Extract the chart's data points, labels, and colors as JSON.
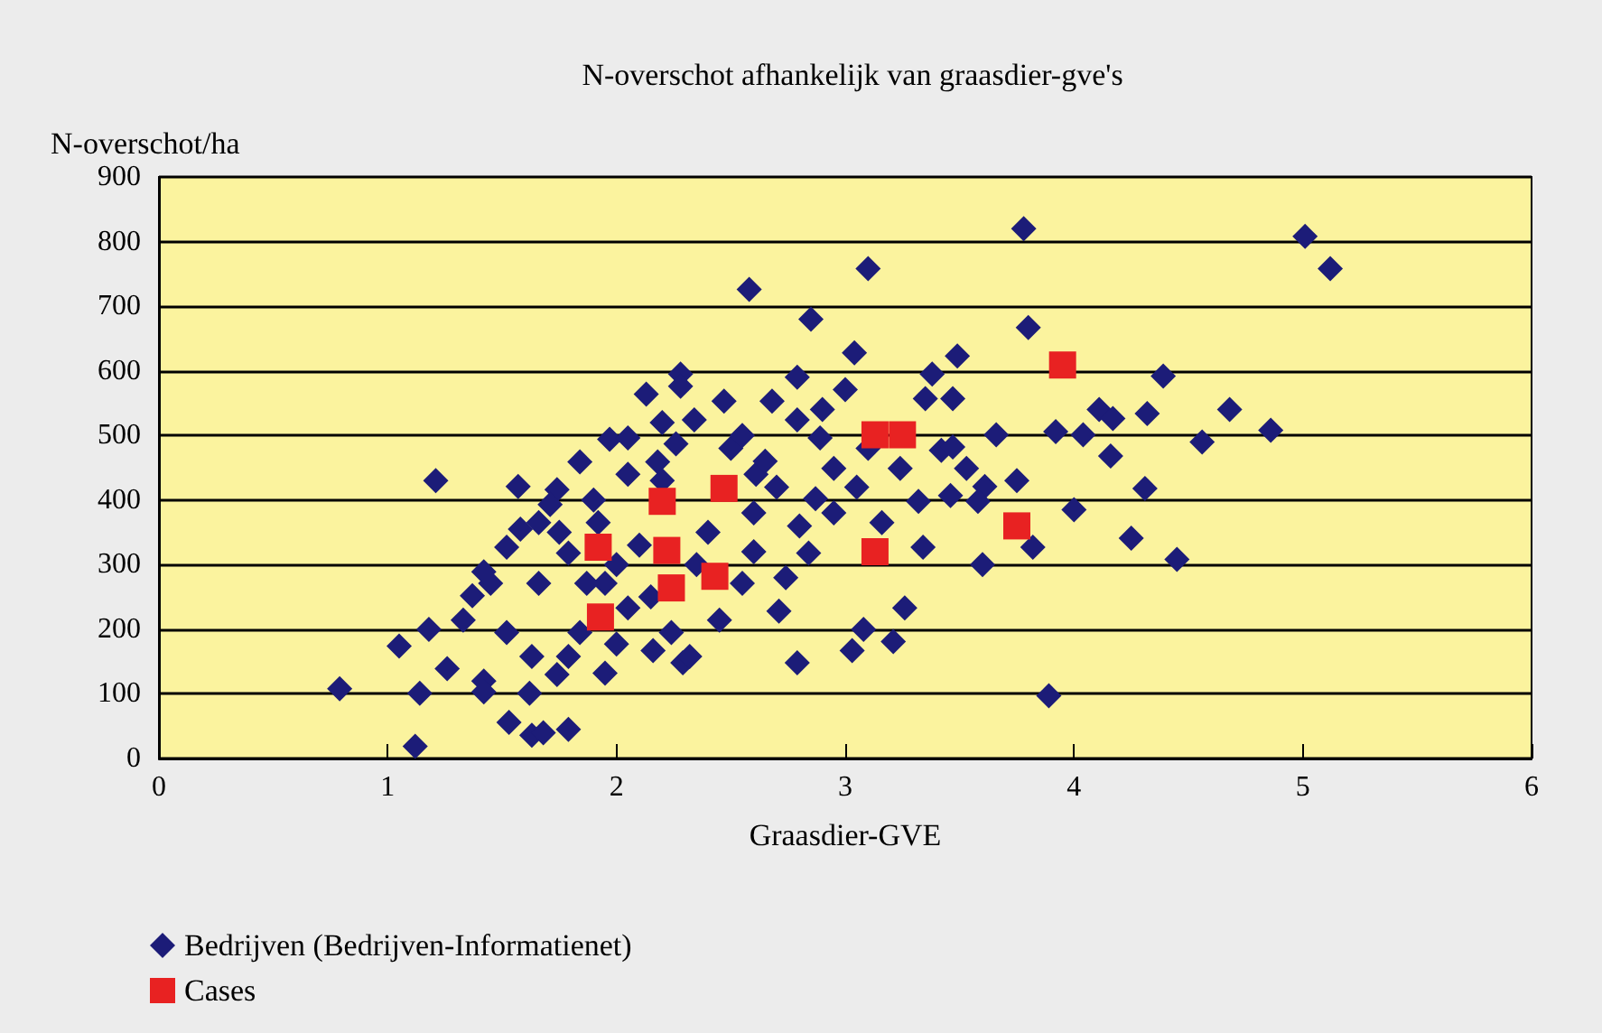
{
  "chart_data": {
    "type": "scatter",
    "title": "N-overschot afhankelijk van graasdier-gve's",
    "xlabel": "Graasdier-GVE",
    "ylabel": "N-overschot/ha",
    "xlim": [
      0,
      6
    ],
    "xticks": [
      0,
      1,
      2,
      3,
      4,
      5,
      6
    ],
    "ylim": [
      0,
      900
    ],
    "yticks": [
      0,
      100,
      200,
      300,
      400,
      500,
      600,
      700,
      800,
      900
    ],
    "grid": "y",
    "legend": "bottom left",
    "series": [
      {
        "name": "Bedrijven (Bedrijven-Informatienet)",
        "color": "#1c1c78",
        "marker": "diamond",
        "x": [
          0.79,
          1.21,
          1.57,
          1.74,
          1.05,
          1.18,
          1.14,
          1.12,
          1.26,
          1.42,
          1.42,
          1.53,
          1.63,
          1.68,
          1.79,
          1.74,
          1.62,
          2.13,
          2.28,
          2.28,
          1.97,
          2.05,
          1.84,
          2.16,
          1.95,
          1.33,
          1.37,
          1.45,
          1.52,
          1.42,
          1.58,
          1.66,
          1.71,
          1.79,
          1.87,
          1.84,
          2.0,
          1.66,
          1.52,
          1.63,
          1.79,
          1.92,
          2.05,
          2.18,
          2.26,
          1.95,
          2.05,
          2.24,
          2.29,
          3.78,
          3.1,
          2.58,
          2.85,
          3.8,
          3.04,
          3.49,
          2.79,
          3.38,
          3.47,
          3.35,
          3.0,
          3.66,
          3.92,
          3.42,
          3.53,
          3.61,
          3.75,
          4.0,
          3.32,
          3.24,
          3.16,
          3.34,
          3.6,
          3.82,
          3.26,
          3.21,
          3.08,
          3.03,
          2.79,
          2.71,
          3.89,
          2.61,
          2.79,
          2.89,
          2.68,
          2.47,
          2.34,
          2.87,
          2.84,
          2.74,
          2.55,
          2.45,
          2.32,
          2.95,
          5.01,
          5.12,
          4.39,
          4.68,
          4.11,
          4.17,
          4.32,
          4.86,
          4.56,
          4.04,
          4.16,
          3.46,
          3.58,
          4.31,
          4.25,
          4.45,
          3.47,
          2.4,
          2.6,
          2.7,
          2.5,
          2.2,
          2.1,
          2.0,
          2.35,
          2.6,
          2.8,
          2.9,
          2.95,
          2.55,
          1.9,
          1.75,
          2.15,
          2.65,
          3.05,
          3.1,
          2.2
        ],
        "values": [
          108,
          430,
          421,
          416,
          174,
          200,
          101,
          19,
          139,
          120,
          103,
          56,
          36,
          40,
          45,
          130,
          101,
          564,
          595,
          576,
          494,
          496,
          459,
          167,
          132,
          214,
          252,
          271,
          327,
          289,
          355,
          365,
          393,
          318,
          271,
          195,
          177,
          271,
          195,
          158,
          158,
          365,
          440,
          459,
          487,
          271,
          233,
          195,
          148,
          820,
          758,
          726,
          680,
          667,
          628,
          623,
          590,
          595,
          557,
          557,
          571,
          501,
          506,
          477,
          449,
          421,
          430,
          385,
          398,
          449,
          365,
          327,
          300,
          327,
          233,
          181,
          200,
          167,
          148,
          228,
          97,
          440,
          524,
          496,
          553,
          553,
          524,
          402,
          318,
          280,
          271,
          214,
          158,
          449,
          808,
          758,
          592,
          540,
          540,
          526,
          534,
          508,
          490,
          501,
          468,
          407,
          398,
          418,
          341,
          308,
          482,
          350,
          380,
          420,
          480,
          430,
          330,
          300,
          300,
          320,
          360,
          540,
          380,
          500,
          400,
          350,
          250,
          460,
          420,
          480,
          520
        ]
      },
      {
        "name": "Cases",
        "color": "#e82222",
        "marker": "square",
        "x": [
          1.92,
          2.2,
          2.47,
          2.22,
          2.24,
          2.43,
          1.93,
          3.13,
          3.13,
          3.25,
          3.75,
          3.95
        ],
        "values": [
          327,
          398,
          418,
          322,
          264,
          282,
          219,
          320,
          501,
          501,
          360,
          609
        ]
      }
    ]
  }
}
